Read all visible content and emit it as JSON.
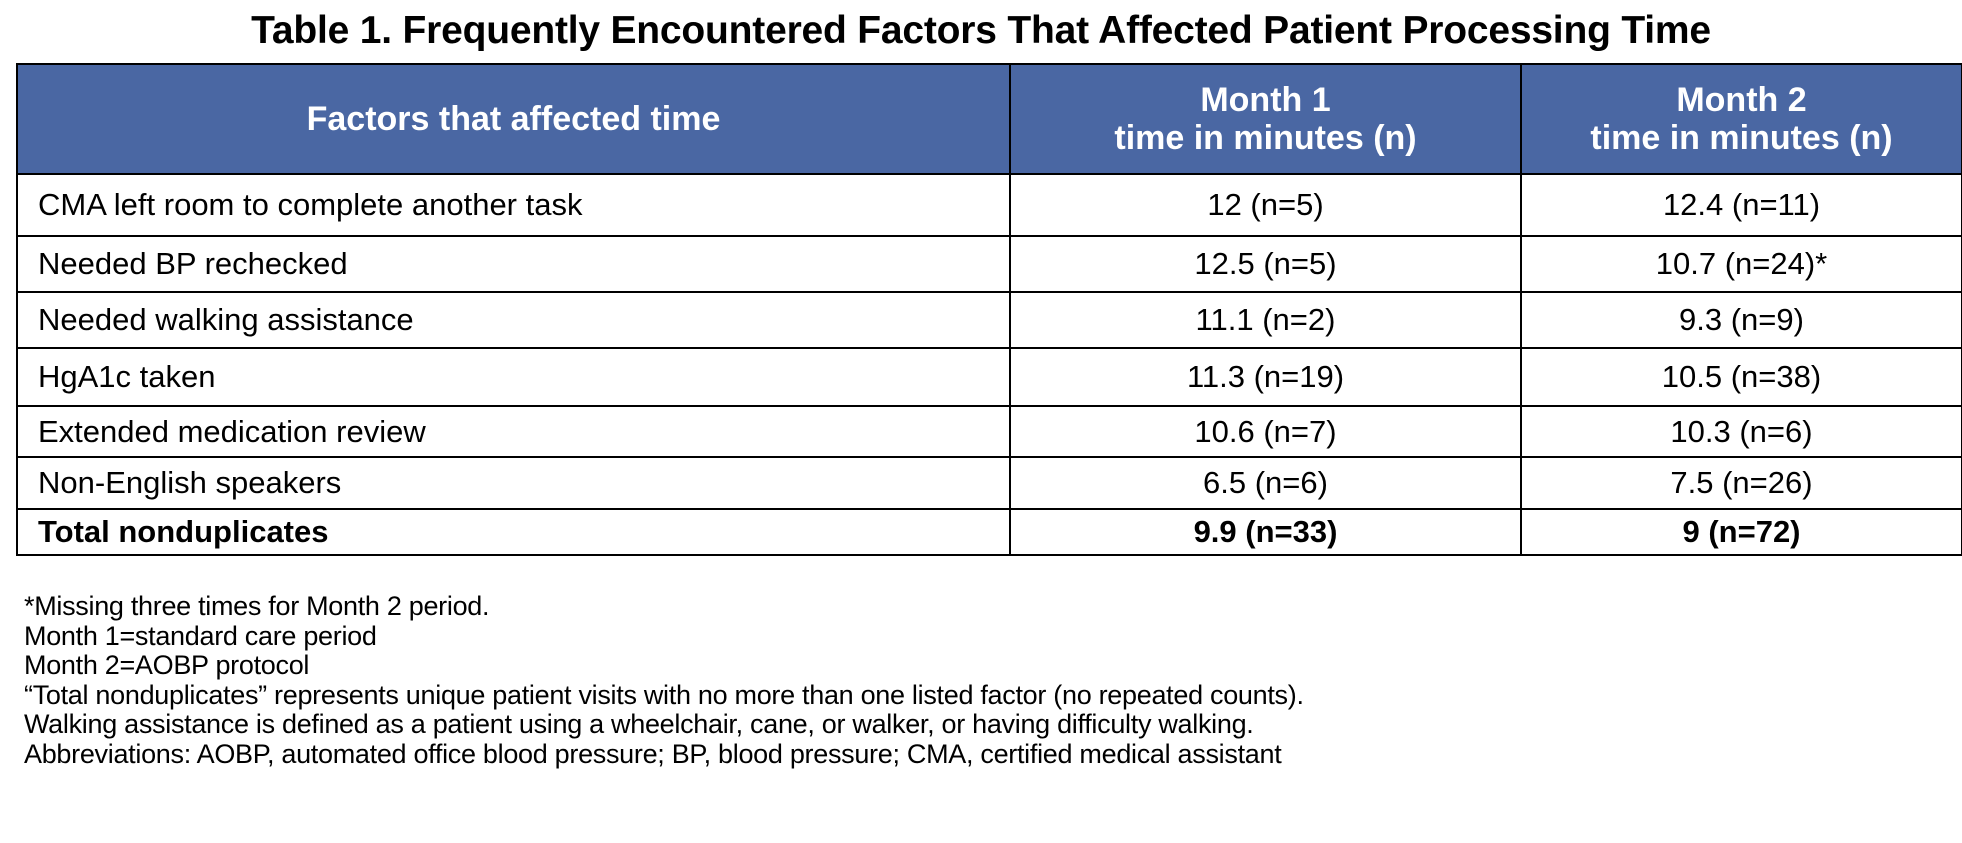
{
  "title": "Table 1. Frequently Encountered Factors That Affected Patient Processing Time",
  "table": {
    "headers": [
      {
        "lines": [
          "Factors that affected time"
        ]
      },
      {
        "lines": [
          "Month 1",
          "time in minutes (n)"
        ]
      },
      {
        "lines": [
          "Month 2",
          "time in minutes (n)"
        ]
      }
    ],
    "rows": [
      {
        "factor": "CMA left room to complete another task",
        "month1": "12 (n=5)",
        "month2": "12.4 (n=11)"
      },
      {
        "factor": "Needed BP rechecked",
        "month1": "12.5 (n=5)",
        "month2": "10.7 (n=24)*"
      },
      {
        "factor": "Needed walking assistance",
        "month1": "11.1 (n=2)",
        "month2": "9.3 (n=9)"
      },
      {
        "factor": "HgA1c taken",
        "month1": "11.3 (n=19)",
        "month2": "10.5 (n=38)"
      },
      {
        "factor": "Extended medication review",
        "month1": "10.6 (n=7)",
        "month2": "10.3 (n=6)"
      },
      {
        "factor": "Non-English speakers",
        "month1": "6.5 (n=6)",
        "month2": "7.5 (n=26)"
      }
    ],
    "total": {
      "factor": "Total nonduplicates",
      "month1": "9.9 (n=33)",
      "month2": "9 (n=72)"
    }
  },
  "notes": [
    "*Missing three times for Month 2 period.",
    "Month 1=standard care period",
    "Month 2=AOBP protocol",
    "“Total nonduplicates” represents unique patient visits with no more than one listed factor (no repeated counts).",
    "Walking assistance is defined as a patient using a wheelchair, cane, or walker, or having difficulty walking.",
    "Abbreviations: AOBP, automated office blood pressure; BP, blood pressure; CMA, certified medical assistant"
  ],
  "colors": {
    "header_background": "#4a67a3",
    "header_text": "#ffffff",
    "border": "#000000"
  }
}
